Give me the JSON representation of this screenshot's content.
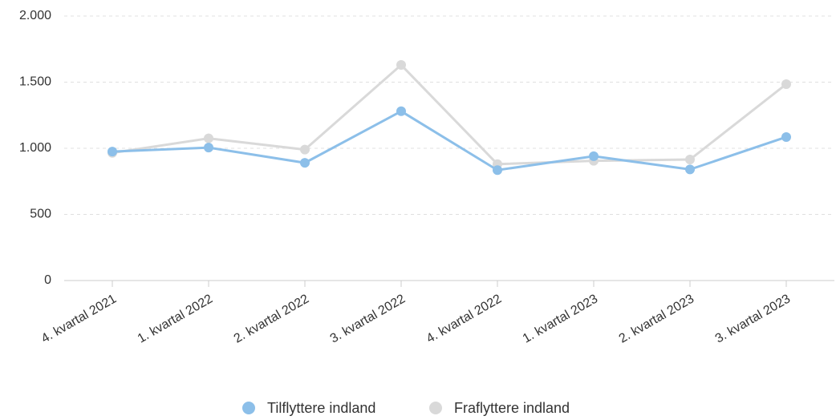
{
  "chart_data": {
    "type": "line",
    "categories": [
      "4. kvartal 2021",
      "1. kvartal 2022",
      "2. kvartal 2022",
      "3. kvartal 2022",
      "4. kvartal 2022",
      "1. kvartal 2023",
      "2. kvartal 2023",
      "3. kvartal 2023"
    ],
    "series": [
      {
        "name": "Tilflyttere indland",
        "color": "#8cbfe9",
        "values": [
          975,
          1005,
          890,
          1280,
          835,
          940,
          840,
          1085
        ]
      },
      {
        "name": "Fraflyttere indland",
        "color": "#d9d9d9",
        "values": [
          965,
          1075,
          990,
          1630,
          880,
          905,
          915,
          1485
        ]
      }
    ],
    "ylim": [
      0,
      2000
    ],
    "yticks": [
      0,
      500,
      {
        "value": 1000,
        "label": "1.000"
      },
      {
        "value": 1500,
        "label": "1.500"
      },
      {
        "value": 2000,
        "label": "2.000"
      }
    ],
    "grid": true,
    "legend": "bottom"
  }
}
